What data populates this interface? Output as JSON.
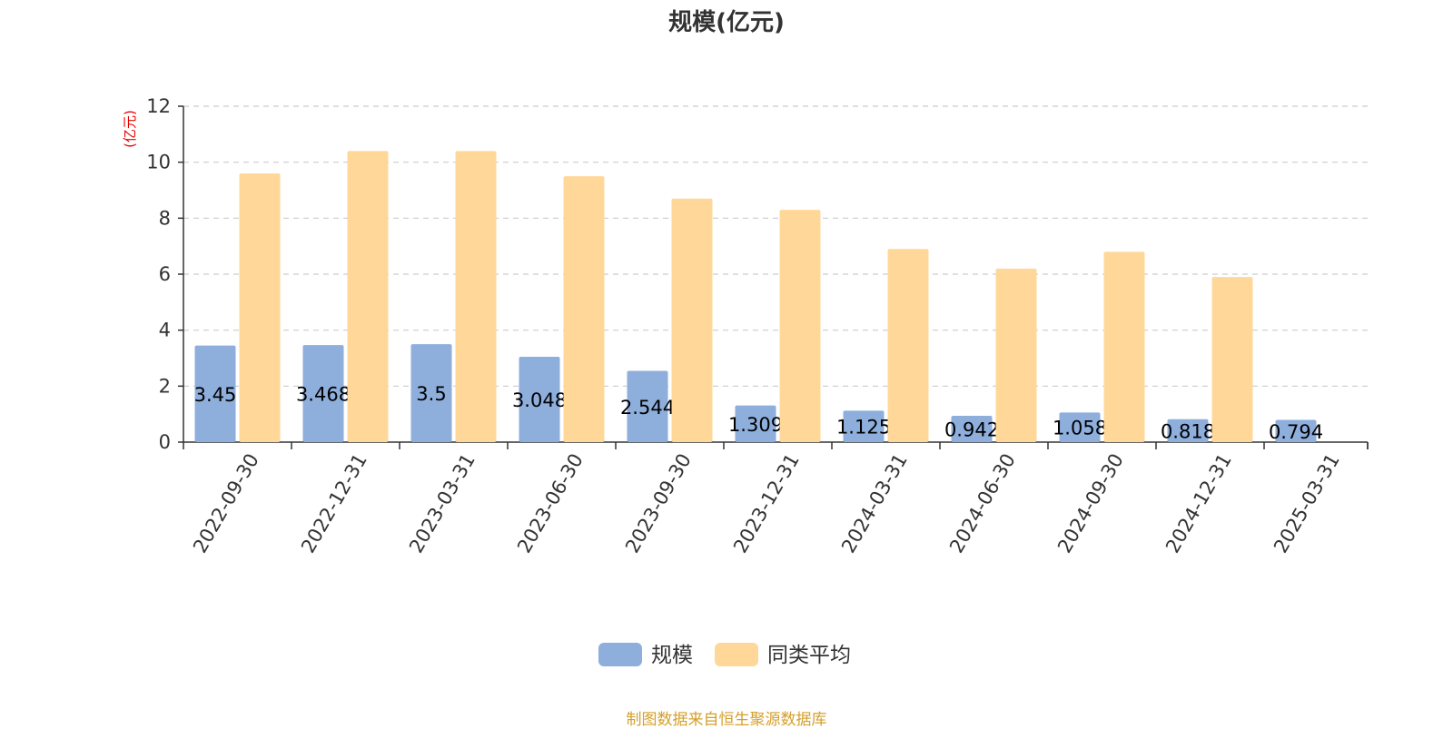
{
  "chart_data": {
    "type": "bar",
    "title": "规模(亿元)",
    "ylabel": "(亿元)",
    "xlabel": "",
    "ylim": [
      0,
      12
    ],
    "yticks": [
      0,
      2,
      4,
      6,
      8,
      10,
      12
    ],
    "grid": true,
    "legend_position": "bottom",
    "categories": [
      "2022-09-30",
      "2022-12-31",
      "2023-03-31",
      "2023-06-30",
      "2023-09-30",
      "2023-12-31",
      "2024-03-31",
      "2024-06-30",
      "2024-09-30",
      "2024-12-31",
      "2025-03-31"
    ],
    "series": [
      {
        "name": "规模",
        "color": "#8eaedc",
        "show_labels": true,
        "values": [
          3.45,
          3.468,
          3.5,
          3.048,
          2.544,
          1.309,
          1.125,
          0.942,
          1.058,
          0.818,
          0.794
        ]
      },
      {
        "name": "同类平均",
        "color": "#ffd899",
        "show_labels": false,
        "values": [
          9.6,
          10.4,
          10.4,
          9.5,
          8.7,
          8.3,
          6.9,
          6.2,
          6.8,
          5.9,
          null
        ]
      }
    ]
  },
  "colors": {
    "ylabel": "#e60000",
    "source": "#d4a02b",
    "axis": "#333333",
    "grid": "#cccccc"
  },
  "source_text": "制图数据来自恒生聚源数据库"
}
